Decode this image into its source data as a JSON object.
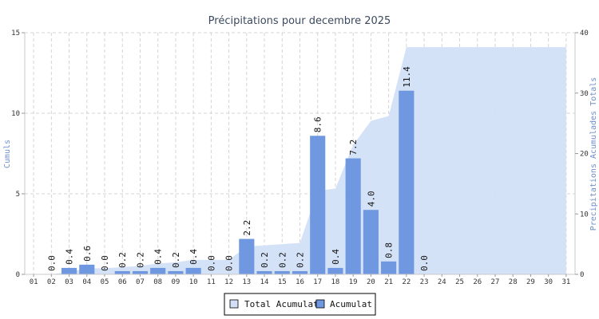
{
  "chart_data": {
    "type": "bar",
    "title": "Précipitations pour decembre 2025",
    "ylabel_left": "Cumuls",
    "ylabel_right": "Precipitations Acumulades Totals",
    "categories": [
      "01",
      "02",
      "03",
      "04",
      "05",
      "06",
      "07",
      "08",
      "09",
      "10",
      "11",
      "12",
      "13",
      "14",
      "15",
      "16",
      "17",
      "18",
      "19",
      "20",
      "21",
      "22",
      "23",
      "24",
      "25",
      "26",
      "27",
      "28",
      "29",
      "30",
      "31"
    ],
    "ylim_left": [
      0,
      15
    ],
    "yticks_left": [
      0,
      5,
      10,
      15
    ],
    "ylim_right": [
      0,
      40
    ],
    "yticks_right": [
      0,
      10,
      20,
      30,
      40
    ],
    "grid": true,
    "legend_position": "bottom-center",
    "series": [
      {
        "name": "Acumulat",
        "kind": "bar",
        "axis": "left",
        "color": "#6f98e0",
        "values": [
          null,
          0.0,
          0.4,
          0.6,
          0.0,
          0.2,
          0.2,
          0.4,
          0.2,
          0.4,
          0.0,
          0.0,
          2.2,
          0.2,
          0.2,
          0.2,
          8.6,
          0.4,
          7.2,
          4.0,
          0.8,
          11.4,
          0.0,
          null,
          null,
          null,
          null,
          null,
          null,
          null,
          null
        ],
        "labels": [
          null,
          "0.0",
          "0.4",
          "0.6",
          "0.0",
          "0.2",
          "0.2",
          "0.4",
          "0.2",
          "0.4",
          "0.0",
          "0.0",
          "2.2",
          "0.2",
          "0.2",
          "0.2",
          "8.6",
          "0.4",
          "7.2",
          "4.0",
          "0.8",
          "11.4",
          "0.0",
          null,
          null,
          null,
          null,
          null,
          null,
          null,
          null
        ]
      },
      {
        "name": "Total Acumulat",
        "kind": "area",
        "axis": "right",
        "color": "#d2e0f7",
        "values": [
          0.0,
          0.0,
          0.4,
          1.0,
          1.0,
          1.2,
          1.4,
          1.8,
          2.0,
          2.4,
          2.4,
          2.4,
          4.6,
          4.8,
          5.0,
          5.2,
          13.8,
          14.2,
          21.4,
          25.4,
          26.2,
          37.6,
          37.6,
          37.6,
          37.6,
          37.6,
          37.6,
          37.6,
          37.6,
          37.6,
          37.6
        ]
      }
    ]
  },
  "legend": {
    "items": [
      {
        "label": "Total Acumulat",
        "color": "#d2e0f7"
      },
      {
        "label": "Acumulat",
        "color": "#6f98e0"
      }
    ]
  }
}
